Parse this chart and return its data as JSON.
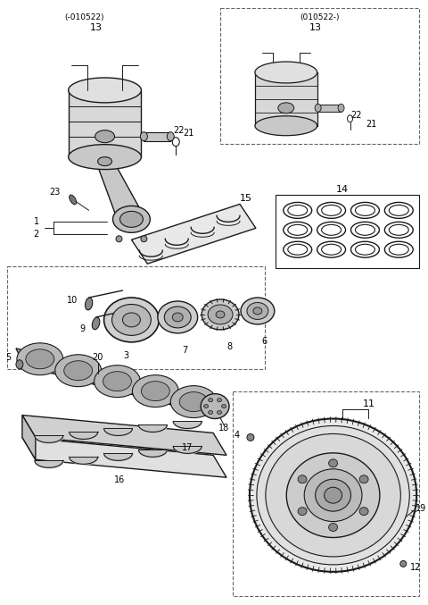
{
  "bg_color": "#ffffff",
  "line_color": "#1a1a1a",
  "figsize": [
    4.8,
    6.77
  ],
  "dpi": 100
}
